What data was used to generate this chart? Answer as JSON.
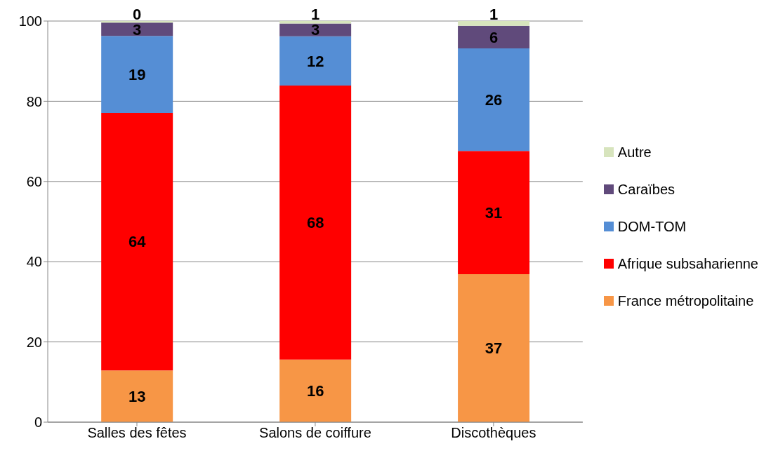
{
  "chart_data": {
    "type": "bar",
    "stacked": true,
    "categories": [
      "Salles des fêtes",
      "Salons de coiffure",
      "Discothèques"
    ],
    "series": [
      {
        "name": "France métropolitaine",
        "color": "#f79646",
        "values": [
          12.9,
          15.6,
          36.9
        ],
        "value_labels": [
          "13",
          "16",
          "37"
        ]
      },
      {
        "name": "Afrique subsaharienne",
        "color": "#ff0000",
        "values": [
          64.2,
          68.3,
          30.7
        ],
        "value_labels": [
          "64",
          "68",
          "31"
        ]
      },
      {
        "name": "DOM-TOM",
        "color": "#558ed5",
        "values": [
          19.2,
          12.3,
          25.6
        ],
        "value_labels": [
          "19",
          "12",
          "26"
        ]
      },
      {
        "name": "Caraïbes",
        "color": "#604a7b",
        "values": [
          3.3,
          3.2,
          5.6
        ],
        "value_labels": [
          "3",
          "3",
          "6"
        ]
      },
      {
        "name": "Autre",
        "color": "#d7e4bd",
        "values": [
          0.4,
          0.6,
          1.2
        ],
        "value_labels": [
          "0",
          "1",
          "1"
        ]
      }
    ],
    "ylim": [
      0,
      100
    ],
    "yticks": [
      0,
      20,
      40,
      60,
      80,
      100
    ],
    "grid": "y",
    "legend": "right"
  }
}
